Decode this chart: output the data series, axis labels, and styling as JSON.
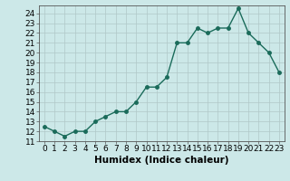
{
  "x": [
    0,
    1,
    2,
    3,
    4,
    5,
    6,
    7,
    8,
    9,
    10,
    11,
    12,
    13,
    14,
    15,
    16,
    17,
    18,
    19,
    20,
    21,
    22,
    23
  ],
  "y": [
    12.5,
    12.0,
    11.5,
    12.0,
    12.0,
    13.0,
    13.5,
    14.0,
    14.0,
    15.0,
    16.5,
    16.5,
    17.5,
    21.0,
    21.0,
    22.5,
    22.0,
    22.5,
    22.5,
    24.5,
    22.0,
    21.0,
    20.0,
    18.0
  ],
  "xlabel": "Humidex (Indice chaleur)",
  "ylim": [
    11,
    24.8
  ],
  "xlim": [
    -0.5,
    23.5
  ],
  "yticks": [
    11,
    12,
    13,
    14,
    15,
    16,
    17,
    18,
    19,
    20,
    21,
    22,
    23,
    24
  ],
  "xticks": [
    0,
    1,
    2,
    3,
    4,
    5,
    6,
    7,
    8,
    9,
    10,
    11,
    12,
    13,
    14,
    15,
    16,
    17,
    18,
    19,
    20,
    21,
    22,
    23
  ],
  "line_color": "#1a6b5a",
  "marker": "o",
  "marker_size": 2.5,
  "bg_color": "#cce8e8",
  "grid_color": "#b0c8c8",
  "fig_bg": "#cce8e8",
  "xlabel_fontsize": 7.5,
  "tick_fontsize": 6.5,
  "line_width": 1.0
}
